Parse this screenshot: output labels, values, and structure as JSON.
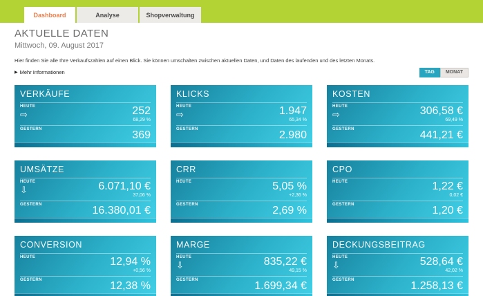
{
  "header": {
    "tabs": [
      {
        "label": "Dashboard",
        "active": true
      },
      {
        "label": "Analyse",
        "active": false
      },
      {
        "label": "Shopverwaltung",
        "active": false
      }
    ]
  },
  "page": {
    "title": "AKTUELLE DATEN",
    "date": "Mittwoch, 09. August 2017",
    "description": "Hier finden Sie alle Ihre Verkaufszahlen auf einen Blick. Sie können umschalten zwischen aktuellen Daten, und Daten des laufenden und des letzten Monats.",
    "more_info_label": "Mehr Informationen",
    "toggle": {
      "day_label": "TAG",
      "month_label": "MONAT",
      "selected": "TAG"
    }
  },
  "labels": {
    "today": "HEUTE",
    "yesterday": "GESTERN"
  },
  "icons": {
    "arrow-right": "⇨",
    "arrow-down": "⇩",
    "triangle-right": "▶"
  },
  "colors": {
    "topbar_green": "#b2d333",
    "active_tab_text": "#ee7c49",
    "toggle_active_teal": "#2aa5c0",
    "card_gradient_start": "#17819e",
    "card_gradient_end": "#41d0e7",
    "card_footer_start": "#0b6f90",
    "card_footer_end": "#2fc2dc"
  },
  "cards": [
    {
      "title": "VERKÄUFE",
      "today_value": "252",
      "change": "68,29 %",
      "yesterday_value": "369",
      "trend": "arrow-right"
    },
    {
      "title": "KLICKS",
      "today_value": "1.947",
      "change": "65,34 %",
      "yesterday_value": "2.980",
      "trend": "arrow-right"
    },
    {
      "title": "KOSTEN",
      "today_value": "306,58 €",
      "change": "69,49 %",
      "yesterday_value": "441,21 €",
      "trend": "arrow-right"
    },
    {
      "title": "UMSÄTZE",
      "today_value": "6.071,10 €",
      "change": "37,06 %",
      "yesterday_value": "16.380,01 €",
      "trend": "arrow-down"
    },
    {
      "title": "CRR",
      "today_value": "5,05 %",
      "change": "+2,36 %",
      "yesterday_value": "2,69 %",
      "trend": "none"
    },
    {
      "title": "CPO",
      "today_value": "1,22 €",
      "change": "0,02 €",
      "yesterday_value": "1,20 €",
      "trend": "none"
    },
    {
      "title": "CONVERSION",
      "today_value": "12,94 %",
      "change": "+0,56 %",
      "yesterday_value": "12,38 %",
      "trend": "none"
    },
    {
      "title": "MARGE",
      "today_value": "835,22 €",
      "change": "49,15 %",
      "yesterday_value": "1.699,34 €",
      "trend": "arrow-down"
    },
    {
      "title": "DECKUNGSBEITRAG",
      "today_value": "528,64 €",
      "change": "42,02 %",
      "yesterday_value": "1.258,13 €",
      "trend": "arrow-down"
    }
  ]
}
